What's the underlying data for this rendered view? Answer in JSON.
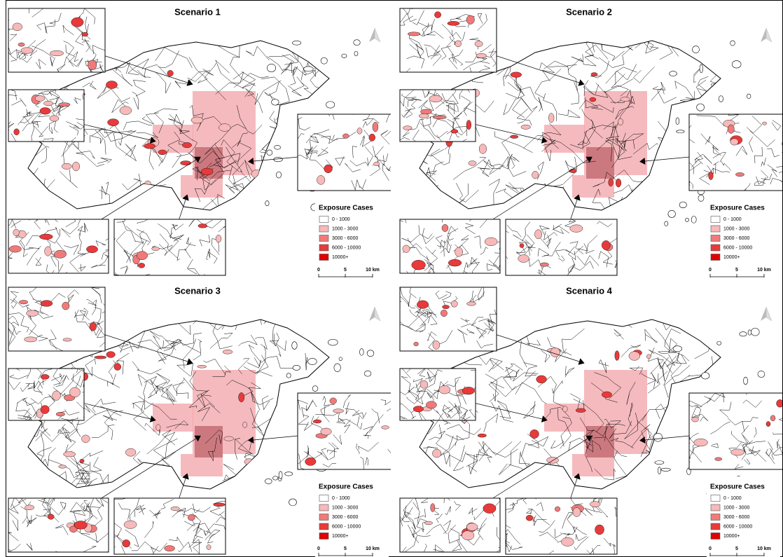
{
  "panels": [
    {
      "title": "Scenario 1",
      "legend": {
        "title": "Exposure Cases",
        "items": [
          {
            "label": "0 - 1000",
            "color": "#ffffff"
          },
          {
            "label": "1000 - 3000",
            "color": "#f7b9b9"
          },
          {
            "label": "3000 - 6000",
            "color": "#f07a7a"
          },
          {
            "label": "6000 - 10000",
            "color": "#e83a3a"
          },
          {
            "label": "10000+",
            "color": "#e00000"
          }
        ]
      },
      "scale": [
        "0",
        "5",
        "10 km"
      ]
    },
    {
      "title": "Scenario 2",
      "legend": {
        "title": "Exposure Cases",
        "items": [
          {
            "label": "0 - 1000",
            "color": "#ffffff"
          },
          {
            "label": "1000 - 3000",
            "color": "#f7b9b9"
          },
          {
            "label": "3000 - 6000",
            "color": "#f07a7a"
          },
          {
            "label": "6000 - 10000",
            "color": "#e83a3a"
          },
          {
            "label": "10000+",
            "color": "#e00000"
          }
        ]
      },
      "scale": [
        "0",
        "5",
        "10 km"
      ]
    },
    {
      "title": "Scenario 3",
      "legend": {
        "title": "Exposure Cases",
        "items": [
          {
            "label": "0 - 1000",
            "color": "#ffffff"
          },
          {
            "label": "1000 - 3000",
            "color": "#f7b9b9"
          },
          {
            "label": "3000 - 6000",
            "color": "#f07a7a"
          },
          {
            "label": "6000 - 10000",
            "color": "#e83a3a"
          },
          {
            "label": "10000+",
            "color": "#e00000"
          }
        ]
      },
      "scale": [
        "0",
        "5",
        "10 km"
      ]
    },
    {
      "title": "Scenario 4",
      "legend": {
        "title": "Exposure Cases",
        "items": [
          {
            "label": "0 - 1000",
            "color": "#ffffff"
          },
          {
            "label": "1000 - 3000",
            "color": "#f7b9b9"
          },
          {
            "label": "3000 - 6000",
            "color": "#f07a7a"
          },
          {
            "label": "6000 - 10000",
            "color": "#e83a3a"
          },
          {
            "label": "10000+",
            "color": "#e00000"
          }
        ]
      },
      "scale": [
        "0",
        "5",
        "10 km"
      ]
    }
  ]
}
